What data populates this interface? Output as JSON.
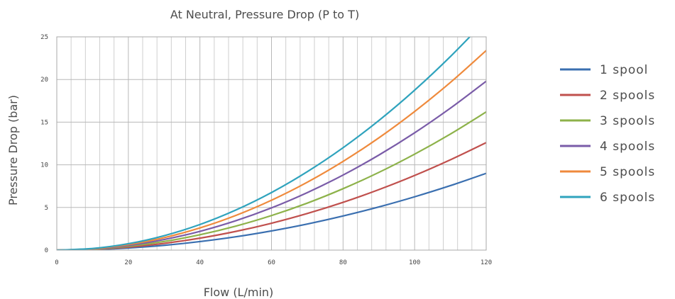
{
  "chart_data": {
    "type": "line",
    "title": "At Neutral, Pressure Drop (P to T)",
    "xlabel": "Flow (L/min)",
    "ylabel": "Pressure Drop (bar)",
    "xlim": [
      0,
      120
    ],
    "ylim": [
      0,
      25
    ],
    "xticks": [
      0,
      20,
      40,
      60,
      80,
      100,
      120
    ],
    "yticks": [
      0,
      5,
      10,
      15,
      20,
      25
    ],
    "grid": true,
    "legend_position": "right",
    "x": [
      0,
      10,
      20,
      30,
      40,
      50,
      60,
      70,
      80,
      90,
      100,
      110,
      120
    ],
    "series": [
      {
        "name": "1 spool",
        "color": "#3a6fb0",
        "values": [
          0,
          0.06,
          0.25,
          0.56,
          1.0,
          1.56,
          2.25,
          3.06,
          4.0,
          5.06,
          6.25,
          7.56,
          9.0
        ]
      },
      {
        "name": "2 spools",
        "color": "#c0504d",
        "values": [
          0,
          0.09,
          0.35,
          0.79,
          1.4,
          2.19,
          3.15,
          4.29,
          5.6,
          7.09,
          8.75,
          10.59,
          12.6
        ]
      },
      {
        "name": "3 spools",
        "color": "#8db24a",
        "values": [
          0,
          0.11,
          0.45,
          1.01,
          1.8,
          2.81,
          4.05,
          5.51,
          7.2,
          9.11,
          11.25,
          13.61,
          16.2
        ]
      },
      {
        "name": "4 spools",
        "color": "#7a5ca8",
        "values": [
          0,
          0.14,
          0.55,
          1.24,
          2.2,
          3.44,
          4.95,
          6.74,
          8.8,
          11.14,
          13.75,
          16.64,
          19.8
        ]
      },
      {
        "name": "5 spools",
        "color": "#ef8a3c",
        "values": [
          0,
          0.16,
          0.65,
          1.46,
          2.6,
          4.06,
          5.85,
          7.96,
          10.4,
          13.16,
          16.25,
          19.66,
          23.4
        ]
      },
      {
        "name": "6 spools",
        "color": "#2fa3bd",
        "values": [
          0,
          0.19,
          0.75,
          1.69,
          3.0,
          4.69,
          6.75,
          9.19,
          12.0,
          15.19,
          18.75,
          22.69,
          27.0
        ]
      }
    ]
  }
}
